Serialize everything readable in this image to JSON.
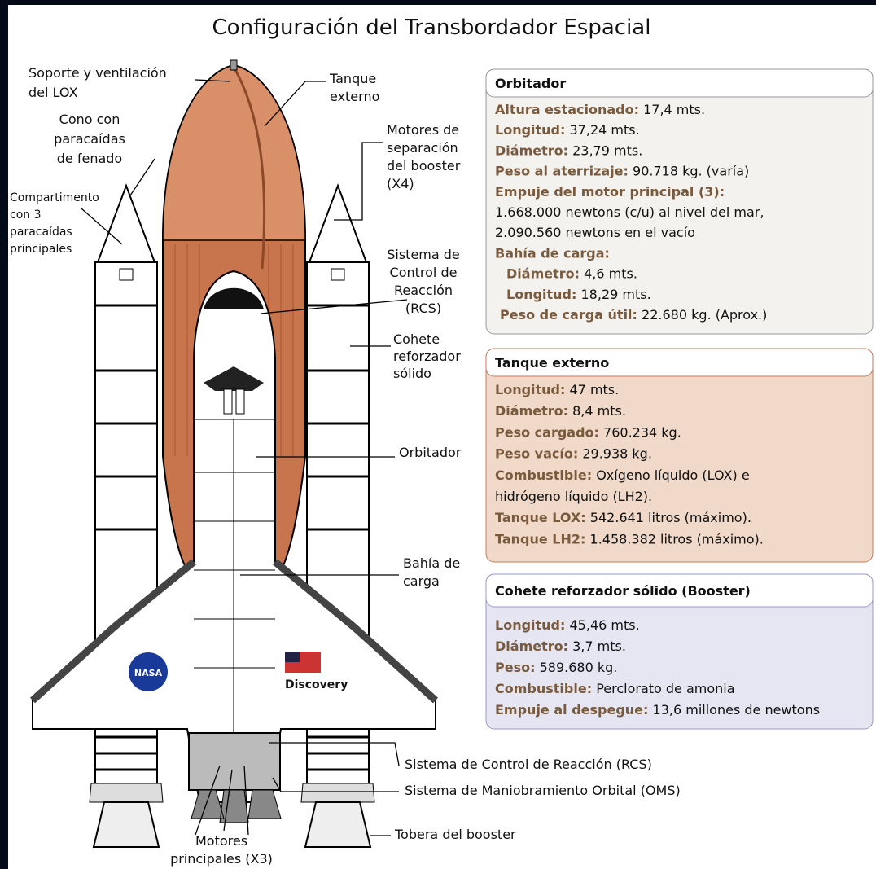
{
  "title": "Configuración del Transbordador Espacial",
  "callouts": [
    {
      "lines": [
        "Soporte y ventilación",
        "del LOX"
      ]
    },
    {
      "lines": [
        "Cono con",
        "paracaídas",
        "de fenado"
      ]
    },
    {
      "lines": [
        "Compartimento",
        "con 3",
        "paracaídas",
        "principales"
      ]
    },
    {
      "lines": [
        "Tanque",
        "externo"
      ]
    },
    {
      "lines": [
        "Motores de",
        "separación",
        "del booster",
        "(X4)"
      ]
    },
    {
      "lines": [
        "Sistema de",
        "Control de",
        "Reacción",
        "(RCS)"
      ]
    },
    {
      "lines": [
        "Cohete",
        "reforzador",
        "sólido"
      ]
    },
    {
      "lines": [
        "Orbitador"
      ]
    },
    {
      "lines": [
        "Bahía de",
        "carga"
      ]
    },
    {
      "lines": [
        "Sistema de Control de Reacción (RCS)"
      ]
    },
    {
      "lines": [
        "Sistema de Maniobramiento Orbital (OMS)"
      ]
    },
    {
      "lines": [
        "Tobera del booster"
      ]
    },
    {
      "lines": [
        "Motores",
        "principales (X3)"
      ]
    }
  ],
  "orbiter_marks": {
    "logo": "NASA",
    "name": "Discovery"
  },
  "panels": [
    {
      "title": "Orbitador",
      "rows": [
        {
          "key": "Altura estacionado:",
          "value": "17,4 mts."
        },
        {
          "key": "Longitud:",
          "value": "37,24 mts."
        },
        {
          "key": "Diámetro:",
          "value": "23,79 mts."
        },
        {
          "key": "Peso al aterrizaje:",
          "value": "90.718 kg. (varía)"
        },
        {
          "key": "Empuje del motor principal (3):"
        },
        {
          "value": "1.668.000 newtons (c/u) al nivel del mar,"
        },
        {
          "value": "2.090.560 newtons en el vacío"
        },
        {
          "key": "Bahía de carga:"
        },
        {
          "key": "Diámetro:",
          "value": "4,6 mts."
        },
        {
          "key": "Longitud:",
          "value": "18,29 mts."
        },
        {
          "key": "Peso de carga útil:",
          "value": "22.680 kg. (Aprox.)"
        }
      ]
    },
    {
      "title": "Tanque externo",
      "rows": [
        {
          "key": "Longitud:",
          "value": "47 mts."
        },
        {
          "key": "Diámetro:",
          "value": "8,4 mts."
        },
        {
          "key": "Peso cargado:",
          "value": "760.234 kg."
        },
        {
          "key": "Peso vacío:",
          "value": "29.938 kg."
        },
        {
          "key": "Combustible:",
          "value": "Oxígeno líquido (LOX) e"
        },
        {
          "value": "hidrógeno líquido (LH2)."
        },
        {
          "key": "Tanque LOX:",
          "value": "542.641 litros (máximo)."
        },
        {
          "key": "Tanque LH2:",
          "value": "1.458.382 litros (máximo)."
        }
      ]
    },
    {
      "title": "Cohete reforzador sólido (Booster)",
      "rows": [
        {
          "key": "Longitud:",
          "value": "45,46 mts."
        },
        {
          "key": "Diámetro:",
          "value": "3,7 mts."
        },
        {
          "key": "Peso:",
          "value": "589.680 kg."
        },
        {
          "key": "Combustible:",
          "value": "Perclorato de amonia"
        },
        {
          "key": "Empuje al despegue:",
          "value": "13,6 millones de newtons"
        }
      ]
    }
  ]
}
